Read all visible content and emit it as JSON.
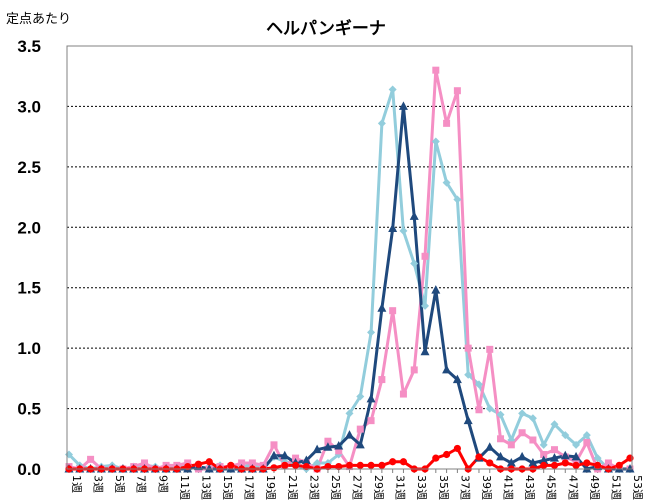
{
  "chart_data": {
    "type": "line",
    "title": "ヘルパンギーナ",
    "ylabel": "定点あたり",
    "xlabel": "",
    "ylim": [
      0,
      3.5
    ],
    "yticks": [
      "0.0",
      "0.5",
      "1.0",
      "1.5",
      "2.0",
      "2.5",
      "3.0",
      "3.5"
    ],
    "grid": "horizontal-dashed",
    "legend": "none",
    "categories": [
      "1週",
      "2週",
      "3週",
      "4週",
      "5週",
      "6週",
      "7週",
      "8週",
      "9週",
      "10週",
      "11週",
      "12週",
      "13週",
      "14週",
      "15週",
      "16週",
      "17週",
      "18週",
      "19週",
      "20週",
      "21週",
      "22週",
      "23週",
      "24週",
      "25週",
      "26週",
      "27週",
      "28週",
      "29週",
      "30週",
      "31週",
      "32週",
      "33週",
      "34週",
      "35週",
      "36週",
      "37週",
      "38週",
      "39週",
      "40週",
      "41週",
      "42週",
      "43週",
      "44週",
      "45週",
      "46週",
      "47週",
      "48週",
      "49週",
      "50週",
      "51週",
      "52週",
      "53週"
    ],
    "xtick_labels": [
      "1週",
      "3週",
      "5週",
      "7週",
      "9週",
      "11週",
      "13週",
      "15週",
      "17週",
      "19週",
      "21週",
      "23週",
      "25週",
      "27週",
      "29週",
      "31週",
      "33週",
      "35週",
      "37週",
      "39週",
      "41週",
      "43週",
      "45週",
      "47週",
      "49週",
      "51週",
      "53週"
    ],
    "series": [
      {
        "color": "#92cddc",
        "marker": "diamond",
        "values": [
          0.12,
          0.03,
          0.0,
          0.02,
          0.03,
          0.0,
          0.02,
          0.03,
          0.02,
          0.0,
          0.02,
          0.03,
          0.0,
          0.02,
          0.03,
          0.0,
          0.02,
          0.03,
          0.0,
          0.1,
          0.06,
          0.03,
          0.0,
          0.05,
          0.05,
          0.12,
          0.46,
          0.6,
          1.13,
          2.86,
          3.14,
          1.97,
          1.7,
          1.35,
          2.71,
          2.37,
          2.23,
          0.78,
          0.7,
          0.5,
          0.45,
          0.24,
          0.46,
          0.42,
          0.2,
          0.37,
          0.28,
          0.2,
          0.28,
          0.09,
          0.0,
          0.0,
          0.0
        ]
      },
      {
        "color": "#f58fc4",
        "marker": "square",
        "values": [
          0.02,
          0.0,
          0.08,
          0.0,
          0.0,
          0.0,
          0.02,
          0.05,
          0.0,
          0.03,
          0.03,
          0.05,
          0.0,
          0.0,
          0.02,
          0.02,
          0.05,
          0.05,
          0.03,
          0.2,
          0.03,
          0.09,
          0.05,
          0.0,
          0.23,
          0.15,
          0.02,
          0.33,
          0.4,
          0.74,
          1.31,
          0.62,
          0.82,
          1.76,
          3.3,
          2.86,
          3.13,
          1.0,
          0.49,
          0.99,
          0.25,
          0.2,
          0.3,
          0.24,
          0.12,
          0.16,
          0.1,
          0.06,
          0.22,
          0.0,
          0.05,
          0.0,
          0.0
        ]
      },
      {
        "color": "#1f497d",
        "marker": "triangle",
        "values": [
          0.0,
          0.0,
          0.0,
          0.0,
          0.0,
          0.0,
          0.0,
          0.0,
          0.0,
          0.0,
          0.0,
          0.0,
          0.02,
          0.0,
          0.0,
          0.0,
          0.0,
          0.0,
          0.0,
          0.11,
          0.11,
          0.05,
          0.07,
          0.16,
          0.18,
          0.19,
          0.28,
          0.2,
          0.58,
          1.33,
          1.99,
          3.0,
          2.09,
          0.97,
          1.48,
          0.82,
          0.74,
          0.4,
          0.09,
          0.18,
          0.1,
          0.05,
          0.1,
          0.05,
          0.07,
          0.09,
          0.11,
          0.1,
          0.0,
          0.02,
          0.0,
          0.0,
          0.0
        ]
      },
      {
        "color": "#ff0000",
        "marker": "circle",
        "values": [
          0.0,
          0.0,
          0.0,
          0.0,
          0.0,
          0.0,
          0.0,
          0.0,
          0.0,
          0.0,
          0.0,
          0.02,
          0.04,
          0.06,
          0.0,
          0.03,
          0.0,
          0.0,
          0.0,
          0.01,
          0.03,
          0.03,
          0.02,
          0.0,
          0.02,
          0.02,
          0.03,
          0.03,
          0.03,
          0.03,
          0.06,
          0.06,
          0.0,
          0.0,
          0.09,
          0.12,
          0.17,
          0.0,
          0.1,
          0.05,
          0.0,
          0.0,
          0.0,
          0.0,
          0.03,
          0.03,
          0.05,
          0.03,
          0.05,
          0.03,
          0.0,
          0.03,
          0.09
        ]
      }
    ]
  }
}
